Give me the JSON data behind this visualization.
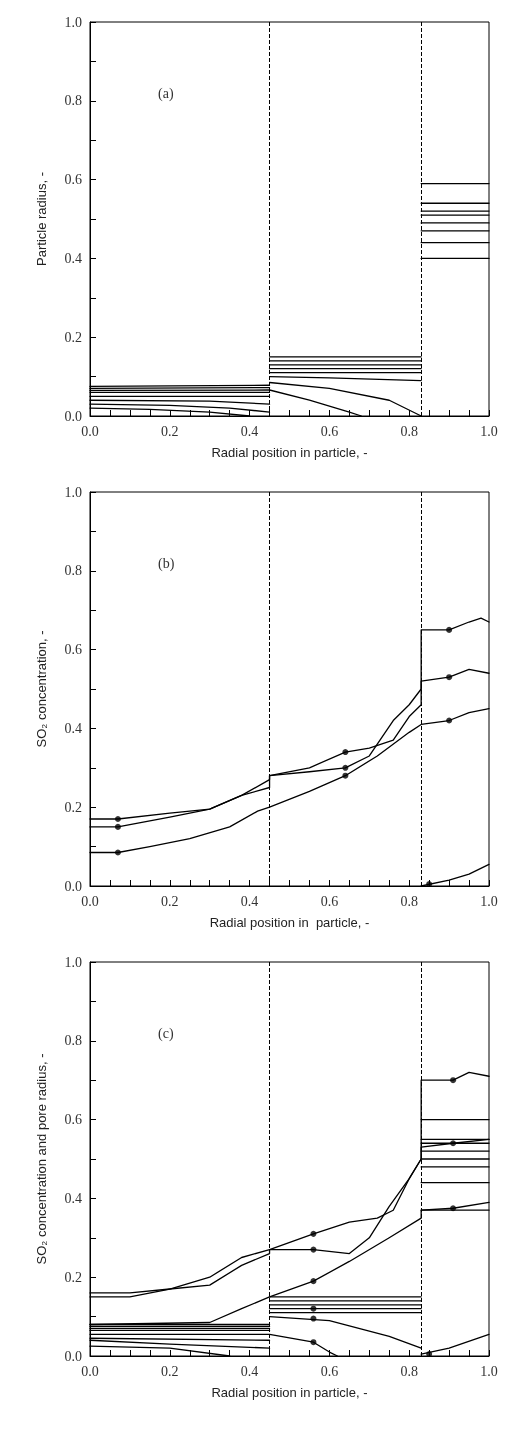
{
  "chart_data": [
    {
      "type": "line",
      "annotations": [
        "(a)"
      ],
      "xlabel": "Radial position in particle, -",
      "ylabel": "Particle radius, -",
      "xlim": [
        0,
        1
      ],
      "ylim": [
        0,
        1
      ],
      "xticks": [
        {
          "value": 0,
          "label": "0.0"
        },
        {
          "value": 0.05,
          "label": null
        },
        {
          "value": 0.1,
          "label": null
        },
        {
          "value": 0.15,
          "label": null
        },
        {
          "value": 0.2,
          "label": "0.2"
        },
        {
          "value": 0.25,
          "label": null
        },
        {
          "value": 0.3,
          "label": null
        },
        {
          "value": 0.35,
          "label": null
        },
        {
          "value": 0.4,
          "label": "0.4"
        },
        {
          "value": 0.45,
          "label": null
        },
        {
          "value": 0.5,
          "label": null
        },
        {
          "value": 0.55,
          "label": null
        },
        {
          "value": 0.6,
          "label": "0.6"
        },
        {
          "value": 0.65,
          "label": null
        },
        {
          "value": 0.7,
          "label": null
        },
        {
          "value": 0.75,
          "label": null
        },
        {
          "value": 0.8,
          "label": "0.8"
        },
        {
          "value": 0.85,
          "label": null
        },
        {
          "value": 0.9,
          "label": null
        },
        {
          "value": 0.95,
          "label": null
        },
        {
          "value": 1,
          "label": "1.0"
        }
      ],
      "yticks": [
        {
          "value": 0,
          "label": "0.0"
        },
        {
          "value": 0.1,
          "label": null
        },
        {
          "value": 0.2,
          "label": "0.2"
        },
        {
          "value": 0.3,
          "label": null
        },
        {
          "value": 0.4,
          "label": "0.4"
        },
        {
          "value": 0.5,
          "label": null
        },
        {
          "value": 0.6,
          "label": "0.6"
        },
        {
          "value": 0.7,
          "label": null
        },
        {
          "value": 0.8,
          "label": "0.8"
        },
        {
          "value": 0.9,
          "label": null
        },
        {
          "value": 1,
          "label": "1.0"
        }
      ],
      "ref_lines": [
        {
          "axis": "x",
          "value": 0.45,
          "line_style": "dashed",
          "color": "#000000"
        },
        {
          "axis": "x",
          "value": 0.83,
          "line_style": "dashed",
          "color": "#000000"
        }
      ],
      "series": [
        {
          "color": "#000000",
          "x": [
            0,
            0.45
          ],
          "values": [
            0.075,
            0.078
          ]
        },
        {
          "color": "#000000",
          "x": [
            0,
            0.45
          ],
          "values": [
            0.07,
            0.072
          ]
        },
        {
          "color": "#000000",
          "x": [
            0,
            0.45,
            0.55,
            0.65,
            0.68
          ],
          "values": [
            0.065,
            0.066,
            0.04,
            0.01,
            0
          ]
        },
        {
          "color": "#000000",
          "x": [
            0,
            0.45
          ],
          "values": [
            0.06,
            0.06
          ]
        },
        {
          "color": "#000000",
          "x": [
            0,
            0.45
          ],
          "values": [
            0.05,
            0.05
          ]
        },
        {
          "color": "#000000",
          "x": [
            0,
            0.3,
            0.45
          ],
          "values": [
            0.04,
            0.038,
            0.03
          ]
        },
        {
          "color": "#000000",
          "x": [
            0,
            0.2,
            0.35,
            0.45
          ],
          "values": [
            0.03,
            0.027,
            0.02,
            0.01
          ]
        },
        {
          "color": "#000000",
          "x": [
            0,
            0.15,
            0.3,
            0.4
          ],
          "values": [
            0.02,
            0.017,
            0.01,
            0
          ]
        },
        {
          "color": "#000000",
          "x": [
            0.45,
            0.83
          ],
          "values": [
            0.15,
            0.15
          ]
        },
        {
          "color": "#000000",
          "x": [
            0.45,
            0.83
          ],
          "values": [
            0.14,
            0.14
          ]
        },
        {
          "color": "#000000",
          "x": [
            0.45,
            0.83
          ],
          "values": [
            0.13,
            0.13
          ]
        },
        {
          "color": "#000000",
          "x": [
            0.45,
            0.83
          ],
          "values": [
            0.12,
            0.12
          ]
        },
        {
          "color": "#000000",
          "x": [
            0.45,
            0.83
          ],
          "values": [
            0.11,
            0.11
          ]
        },
        {
          "color": "#000000",
          "x": [
            0.45,
            0.6,
            0.83
          ],
          "values": [
            0.1,
            0.097,
            0.09
          ]
        },
        {
          "color": "#000000",
          "x": [
            0.45,
            0.6,
            0.75,
            0.83
          ],
          "values": [
            0.085,
            0.07,
            0.04,
            0
          ]
        },
        {
          "color": "#000000",
          "x": [
            0.83,
            1
          ],
          "values": [
            0.59,
            0.59
          ]
        },
        {
          "color": "#000000",
          "x": [
            0.83,
            1
          ],
          "values": [
            0.54,
            0.54
          ]
        },
        {
          "color": "#000000",
          "x": [
            0.83,
            1
          ],
          "values": [
            0.52,
            0.52
          ]
        },
        {
          "color": "#000000",
          "x": [
            0.83,
            1
          ],
          "values": [
            0.51,
            0.51
          ]
        },
        {
          "color": "#000000",
          "x": [
            0.83,
            1
          ],
          "values": [
            0.49,
            0.49
          ]
        },
        {
          "color": "#000000",
          "x": [
            0.83,
            1
          ],
          "values": [
            0.47,
            0.47
          ]
        },
        {
          "color": "#000000",
          "x": [
            0.83,
            1
          ],
          "values": [
            0.44,
            0.44
          ]
        },
        {
          "color": "#000000",
          "x": [
            0.83,
            1
          ],
          "values": [
            0.4,
            0.4
          ]
        }
      ]
    },
    {
      "type": "line",
      "annotations": [
        "(b)"
      ],
      "xlabel": "Radial position in  particle, -",
      "ylabel": "SO₂ concentration, -",
      "xlim": [
        0,
        1
      ],
      "ylim": [
        0,
        1
      ],
      "xticks": [
        {
          "value": 0,
          "label": "0.0"
        },
        {
          "value": 0.05,
          "label": null
        },
        {
          "value": 0.1,
          "label": null
        },
        {
          "value": 0.15,
          "label": null
        },
        {
          "value": 0.2,
          "label": "0.2"
        },
        {
          "value": 0.25,
          "label": null
        },
        {
          "value": 0.3,
          "label": null
        },
        {
          "value": 0.35,
          "label": null
        },
        {
          "value": 0.4,
          "label": "0.4"
        },
        {
          "value": 0.45,
          "label": null
        },
        {
          "value": 0.5,
          "label": null
        },
        {
          "value": 0.55,
          "label": null
        },
        {
          "value": 0.6,
          "label": "0.6"
        },
        {
          "value": 0.65,
          "label": null
        },
        {
          "value": 0.7,
          "label": null
        },
        {
          "value": 0.75,
          "label": null
        },
        {
          "value": 0.8,
          "label": "0.8"
        },
        {
          "value": 0.85,
          "label": null
        },
        {
          "value": 0.9,
          "label": null
        },
        {
          "value": 0.95,
          "label": null
        },
        {
          "value": 1,
          "label": "1.0"
        }
      ],
      "yticks": [
        {
          "value": 0,
          "label": "0.0"
        },
        {
          "value": 0.1,
          "label": null
        },
        {
          "value": 0.2,
          "label": "0.2"
        },
        {
          "value": 0.3,
          "label": null
        },
        {
          "value": 0.4,
          "label": "0.4"
        },
        {
          "value": 0.5,
          "label": null
        },
        {
          "value": 0.6,
          "label": "0.6"
        },
        {
          "value": 0.7,
          "label": null
        },
        {
          "value": 0.8,
          "label": "0.8"
        },
        {
          "value": 0.9,
          "label": null
        },
        {
          "value": 1,
          "label": "1.0"
        }
      ],
      "ref_lines": [
        {
          "axis": "x",
          "value": 0.45,
          "line_style": "dashed",
          "color": "#000000"
        },
        {
          "axis": "x",
          "value": 0.83,
          "line_style": "dashed",
          "color": "#000000"
        }
      ],
      "series": [
        {
          "color": "#000000",
          "x": [
            0,
            0.07,
            0.2,
            0.3,
            0.38,
            0.45,
            0.45,
            0.55,
            0.64,
            0.7,
            0.76,
            0.8,
            0.83,
            0.83,
            0.9,
            0.95,
            0.98,
            1
          ],
          "values": [
            0.17,
            0.17,
            0.185,
            0.195,
            0.23,
            0.27,
            0.28,
            0.3,
            0.34,
            0.35,
            0.37,
            0.43,
            0.46,
            0.65,
            0.65,
            0.67,
            0.68,
            0.67
          ]
        },
        {
          "color": "#000000",
          "x": [
            0,
            0.07,
            0.2,
            0.3,
            0.38,
            0.45,
            0.45,
            0.55,
            0.64,
            0.7,
            0.76,
            0.8,
            0.83,
            0.83,
            0.9,
            0.95,
            1
          ],
          "values": [
            0.15,
            0.15,
            0.175,
            0.195,
            0.23,
            0.25,
            0.28,
            0.29,
            0.3,
            0.33,
            0.42,
            0.46,
            0.5,
            0.52,
            0.53,
            0.55,
            0.54
          ]
        },
        {
          "color": "#000000",
          "x": [
            0,
            0.07,
            0.15,
            0.25,
            0.35,
            0.42,
            0.45,
            0.55,
            0.64,
            0.72,
            0.8,
            0.83,
            0.9,
            0.95,
            1
          ],
          "values": [
            0.085,
            0.085,
            0.1,
            0.12,
            0.15,
            0.19,
            0.2,
            0.24,
            0.28,
            0.33,
            0.39,
            0.41,
            0.42,
            0.44,
            0.45
          ]
        },
        {
          "color": "#000000",
          "x": [
            0.83,
            0.9,
            0.95,
            1
          ],
          "values": [
            0,
            0.015,
            0.03,
            0.055
          ]
        },
        {
          "type": "scatter",
          "marker": "circle",
          "color": "#000000",
          "x": [
            0.07,
            0.07,
            0.07,
            0.64,
            0.64,
            0.64,
            0.9,
            0.9,
            0.9,
            0.85
          ],
          "values": [
            0.17,
            0.15,
            0.085,
            0.34,
            0.3,
            0.28,
            0.65,
            0.53,
            0.42,
            0.005
          ]
        }
      ]
    },
    {
      "type": "line",
      "annotations": [
        "(c)"
      ],
      "xlabel": "Radial position in particle, -",
      "ylabel": "SO₂ concentration and pore radius, -",
      "xlim": [
        0,
        1
      ],
      "ylim": [
        0,
        1
      ],
      "xticks": [
        {
          "value": 0,
          "label": "0.0"
        },
        {
          "value": 0.05,
          "label": null
        },
        {
          "value": 0.1,
          "label": null
        },
        {
          "value": 0.15,
          "label": null
        },
        {
          "value": 0.2,
          "label": "0.2"
        },
        {
          "value": 0.25,
          "label": null
        },
        {
          "value": 0.3,
          "label": null
        },
        {
          "value": 0.35,
          "label": null
        },
        {
          "value": 0.4,
          "label": "0.4"
        },
        {
          "value": 0.45,
          "label": null
        },
        {
          "value": 0.5,
          "label": null
        },
        {
          "value": 0.55,
          "label": null
        },
        {
          "value": 0.6,
          "label": "0.6"
        },
        {
          "value": 0.65,
          "label": null
        },
        {
          "value": 0.7,
          "label": null
        },
        {
          "value": 0.75,
          "label": null
        },
        {
          "value": 0.8,
          "label": "0.8"
        },
        {
          "value": 0.85,
          "label": null
        },
        {
          "value": 0.9,
          "label": null
        },
        {
          "value": 0.95,
          "label": null
        },
        {
          "value": 1,
          "label": "1.0"
        }
      ],
      "yticks": [
        {
          "value": 0,
          "label": "0.0"
        },
        {
          "value": 0.1,
          "label": null
        },
        {
          "value": 0.2,
          "label": "0.2"
        },
        {
          "value": 0.3,
          "label": null
        },
        {
          "value": 0.4,
          "label": "0.4"
        },
        {
          "value": 0.5,
          "label": null
        },
        {
          "value": 0.6,
          "label": "0.6"
        },
        {
          "value": 0.7,
          "label": null
        },
        {
          "value": 0.8,
          "label": "0.8"
        },
        {
          "value": 0.9,
          "label": null
        },
        {
          "value": 1,
          "label": "1.0"
        }
      ],
      "ref_lines": [
        {
          "axis": "x",
          "value": 0.45,
          "line_style": "dashed",
          "color": "#000000"
        },
        {
          "axis": "x",
          "value": 0.83,
          "line_style": "dashed",
          "color": "#000000"
        }
      ],
      "series": [
        {
          "color": "#000000",
          "x": [
            0,
            0.1,
            0.2,
            0.3,
            0.38,
            0.45,
            0.56,
            0.65,
            0.72,
            0.76,
            0.8,
            0.83,
            0.83,
            0.91,
            0.95,
            1
          ],
          "values": [
            0.16,
            0.16,
            0.17,
            0.2,
            0.25,
            0.27,
            0.31,
            0.34,
            0.35,
            0.37,
            0.45,
            0.5,
            0.7,
            0.7,
            0.72,
            0.71
          ]
        },
        {
          "color": "#000000",
          "x": [
            0,
            0.1,
            0.2,
            0.3,
            0.38,
            0.45,
            0.45,
            0.56,
            0.65,
            0.7,
            0.75,
            0.8,
            0.83,
            0.83,
            0.91,
            1
          ],
          "values": [
            0.15,
            0.15,
            0.17,
            0.18,
            0.23,
            0.26,
            0.27,
            0.27,
            0.26,
            0.3,
            0.38,
            0.45,
            0.5,
            0.53,
            0.54,
            0.55
          ]
        },
        {
          "color": "#000000",
          "x": [
            0,
            0.3,
            0.38,
            0.45,
            0.56,
            0.65,
            0.75,
            0.83,
            0.83,
            0.91,
            1
          ],
          "values": [
            0.08,
            0.085,
            0.12,
            0.15,
            0.19,
            0.24,
            0.3,
            0.35,
            0.37,
            0.375,
            0.39
          ]
        },
        {
          "color": "#000000",
          "x": [
            0.83,
            0.9,
            1
          ],
          "values": [
            0.005,
            0.02,
            0.055
          ]
        },
        {
          "color": "#000000",
          "x": [
            0,
            0.45
          ],
          "values": [
            0.08,
            0.08
          ]
        },
        {
          "color": "#000000",
          "x": [
            0,
            0.45
          ],
          "values": [
            0.075,
            0.075
          ]
        },
        {
          "color": "#000000",
          "x": [
            0,
            0.45
          ],
          "values": [
            0.07,
            0.07
          ]
        },
        {
          "color": "#000000",
          "x": [
            0,
            0.45
          ],
          "values": [
            0.065,
            0.065
          ]
        },
        {
          "color": "#000000",
          "x": [
            0,
            0.45,
            0.56,
            0.6,
            0.62
          ],
          "values": [
            0.055,
            0.055,
            0.035,
            0.01,
            0
          ]
        },
        {
          "color": "#000000",
          "x": [
            0,
            0.45
          ],
          "values": [
            0.045,
            0.04
          ]
        },
        {
          "color": "#000000",
          "x": [
            0,
            0.2,
            0.45
          ],
          "values": [
            0.04,
            0.03,
            0.02
          ]
        },
        {
          "color": "#000000",
          "x": [
            0,
            0.2,
            0.35
          ],
          "values": [
            0.025,
            0.02,
            0
          ]
        },
        {
          "color": "#000000",
          "x": [
            0.45,
            0.83
          ],
          "values": [
            0.15,
            0.15
          ]
        },
        {
          "color": "#000000",
          "x": [
            0.45,
            0.83
          ],
          "values": [
            0.14,
            0.14
          ]
        },
        {
          "color": "#000000",
          "x": [
            0.45,
            0.83
          ],
          "values": [
            0.13,
            0.13
          ]
        },
        {
          "color": "#000000",
          "x": [
            0.45,
            0.83
          ],
          "values": [
            0.12,
            0.12
          ]
        },
        {
          "color": "#000000",
          "x": [
            0.45,
            0.83
          ],
          "values": [
            0.11,
            0.11
          ]
        },
        {
          "color": "#000000",
          "x": [
            0.45,
            0.6,
            0.75,
            0.83
          ],
          "values": [
            0.1,
            0.09,
            0.05,
            0.02
          ]
        },
        {
          "color": "#000000",
          "x": [
            0.83,
            1
          ],
          "values": [
            0.6,
            0.6
          ]
        },
        {
          "color": "#000000",
          "x": [
            0.83,
            1
          ],
          "values": [
            0.55,
            0.55
          ]
        },
        {
          "color": "#000000",
          "x": [
            0.83,
            1
          ],
          "values": [
            0.54,
            0.54
          ]
        },
        {
          "color": "#000000",
          "x": [
            0.83,
            1
          ],
          "values": [
            0.52,
            0.52
          ]
        },
        {
          "color": "#000000",
          "x": [
            0.83,
            1
          ],
          "values": [
            0.5,
            0.5
          ]
        },
        {
          "color": "#000000",
          "x": [
            0.83,
            1
          ],
          "values": [
            0.48,
            0.48
          ]
        },
        {
          "color": "#000000",
          "x": [
            0.83,
            1
          ],
          "values": [
            0.44,
            0.44
          ]
        },
        {
          "color": "#000000",
          "x": [
            0.83,
            1
          ],
          "values": [
            0.37,
            0.37
          ]
        },
        {
          "type": "scatter",
          "marker": "circle",
          "color": "#000000",
          "x": [
            0.56,
            0.56,
            0.56,
            0.56,
            0.56,
            0.56,
            0.91,
            0.91,
            0.91,
            0.85
          ],
          "values": [
            0.31,
            0.27,
            0.19,
            0.12,
            0.095,
            0.035,
            0.7,
            0.54,
            0.375,
            0.005
          ]
        }
      ]
    }
  ]
}
